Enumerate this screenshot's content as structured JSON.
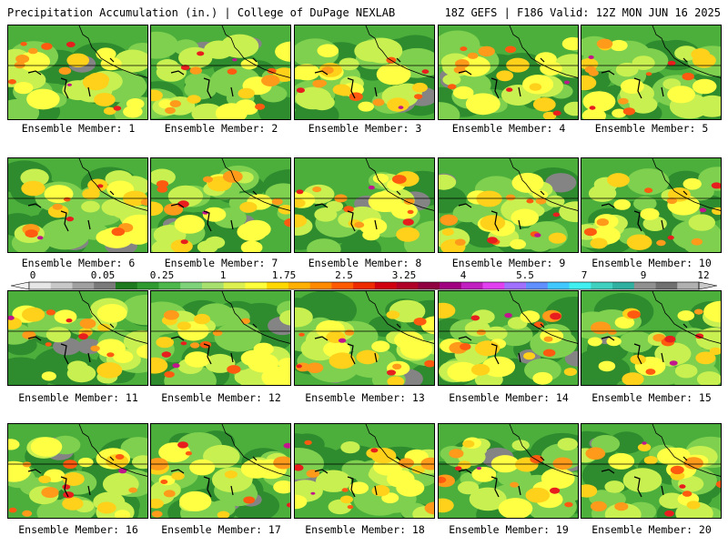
{
  "header": {
    "left": "Precipitation Accumulation (in.) | College of DuPage NEXLAB",
    "right": "18Z GEFS | F186 Valid: 12Z MON JUN 16 2025"
  },
  "members": [
    "Ensemble Member: 1",
    "Ensemble Member: 2",
    "Ensemble Member: 3",
    "Ensemble Member: 4",
    "Ensemble Member: 5",
    "Ensemble Member: 6",
    "Ensemble Member: 7",
    "Ensemble Member: 8",
    "Ensemble Member: 9",
    "Ensemble Member: 10",
    "Ensemble Member: 11",
    "Ensemble Member: 12",
    "Ensemble Member: 13",
    "Ensemble Member: 14",
    "Ensemble Member: 15",
    "Ensemble Member: 16",
    "Ensemble Member: 17",
    "Ensemble Member: 18",
    "Ensemble Member: 19",
    "Ensemble Member: 20"
  ],
  "colorbar": {
    "labels": [
      "0",
      "0.05",
      "0.25",
      "1",
      "1.75",
      "2.5",
      "3.25",
      "4",
      "5.5",
      "7",
      "9",
      "12"
    ],
    "colors": [
      "#e6e6e6",
      "#c8c8c8",
      "#a0a0a0",
      "#7a7a7a",
      "#1e7a1e",
      "#2f9a2f",
      "#4cb84c",
      "#7ed27a",
      "#a8e070",
      "#dcf050",
      "#ffff3a",
      "#ffd800",
      "#ffb000",
      "#ff8a00",
      "#ff5a00",
      "#ee2a00",
      "#d00010",
      "#b00028",
      "#900040",
      "#a00080",
      "#c020c0",
      "#e040f0",
      "#a070ff",
      "#6090ff",
      "#40c8ff",
      "#40f0f0",
      "#40d0c0",
      "#30b0a0",
      "#909090",
      "#707070",
      "#b0b0b0"
    ]
  },
  "palette": [
    "#b4b4b4",
    "#848484",
    "#2e8b2e",
    "#4caf3c",
    "#7ed04e",
    "#c8f050",
    "#ffff44",
    "#ffd11a",
    "#ff9a1a",
    "#ff5a10",
    "#e81e1e",
    "#b8102a",
    "#c0158c",
    "#e040e8"
  ]
}
